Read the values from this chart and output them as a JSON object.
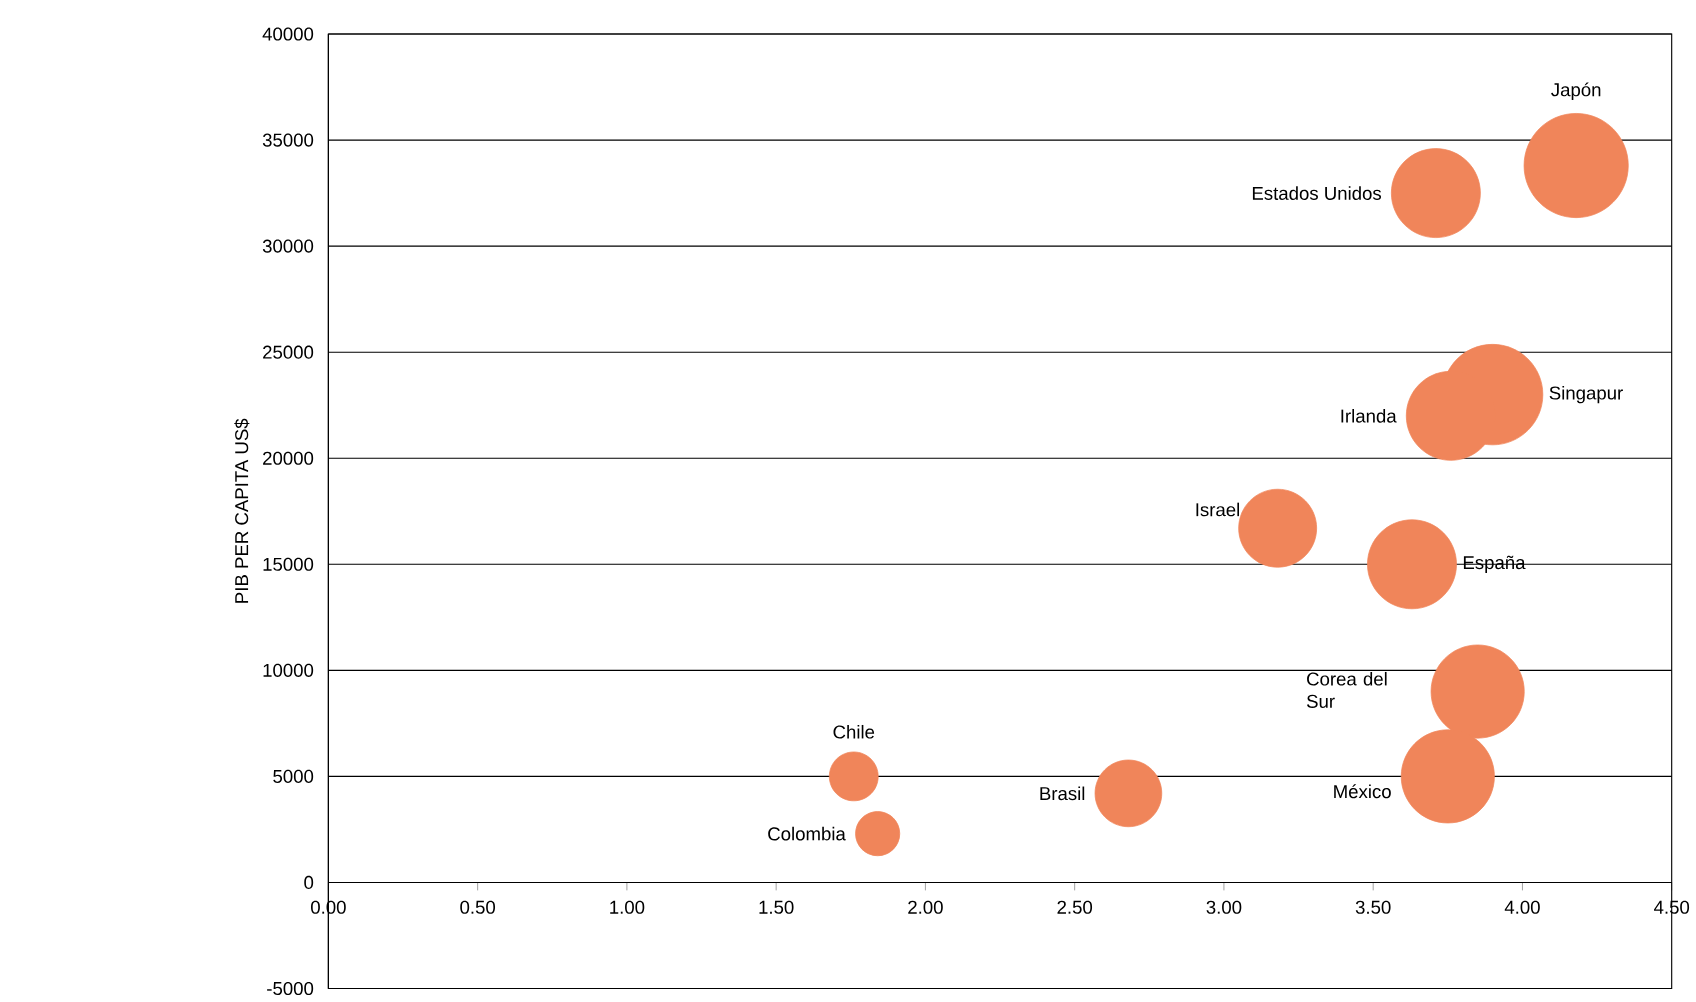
{
  "chart_data": {
    "type": "bubble",
    "ylabel": "PIB PER CAPITA US$",
    "color": "#f0855a",
    "marker": "circle",
    "grid": "y",
    "x": [
      4.18,
      3.71,
      3.9,
      3.76,
      3.18,
      3.63,
      3.85,
      3.75,
      1.76,
      1.84,
      2.68
    ],
    "values": [
      33800,
      32500,
      23000,
      22000,
      16700,
      15000,
      9000,
      5000,
      5000,
      2300,
      4200
    ],
    "sizes": [
      1,
      0.73,
      0.93,
      0.73,
      0.56,
      0.73,
      0.8,
      0.8,
      0.22,
      0.18,
      0.41
    ],
    "xlim": [
      0,
      4.5
    ],
    "ylim": [
      -5000,
      40000
    ],
    "xticks": [
      {
        "value": 0,
        "label": "0.00"
      },
      {
        "value": 0.5,
        "label": "0.50"
      },
      {
        "value": 1,
        "label": "1.00"
      },
      {
        "value": 1.5,
        "label": "1.50"
      },
      {
        "value": 2,
        "label": "2.00"
      },
      {
        "value": 2.5,
        "label": "2.50"
      },
      {
        "value": 3,
        "label": "3.00"
      },
      {
        "value": 3.5,
        "label": "3.50"
      },
      {
        "value": 4,
        "label": "4.00"
      },
      {
        "value": 4.5,
        "label": "4.50"
      }
    ],
    "yticks": [
      -5000,
      0,
      5000,
      10000,
      15000,
      20000,
      25000,
      30000,
      35000,
      40000
    ],
    "annotations": [
      "Japón",
      "Estados Unidos",
      "Singapur",
      "Irlanda",
      "Israel",
      "España",
      "Corea del Sur",
      "México",
      "Chile",
      "Colombia",
      "Brasil"
    ]
  }
}
